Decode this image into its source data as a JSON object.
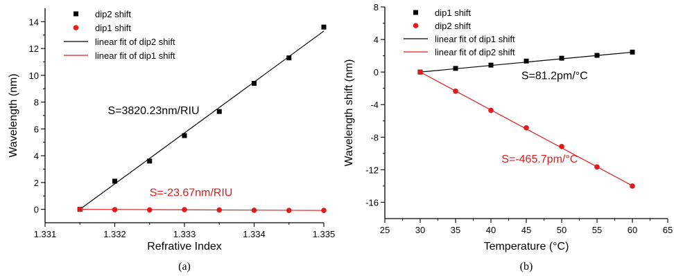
{
  "chart_data": [
    {
      "type": "scatter",
      "caption": "(a)",
      "xlabel": "Refrative Index",
      "ylabel": "Wavelength (nm)",
      "xlim": [
        1.331,
        1.335
      ],
      "ylim": [
        -1,
        15
      ],
      "xticks": [
        1.331,
        1.332,
        1.333,
        1.334,
        1.335
      ],
      "xtick_labels": [
        "1.331",
        "1.332",
        "1.333",
        "1.334",
        "1.335"
      ],
      "yticks": [
        0,
        2,
        4,
        6,
        8,
        10,
        12,
        14
      ],
      "ytick_labels": [
        "0",
        "2",
        "4",
        "6",
        "8",
        "10",
        "12",
        "14"
      ],
      "grid": false,
      "legend_position": "top-left",
      "series": [
        {
          "name": "dip2 shift",
          "kind": "points",
          "marker": "square",
          "color": "#000000",
          "x": [
            1.3315,
            1.332,
            1.3325,
            1.333,
            1.3335,
            1.334,
            1.3345,
            1.335
          ],
          "y": [
            0,
            2.1,
            3.6,
            5.5,
            7.3,
            9.4,
            11.3,
            13.6
          ]
        },
        {
          "name": "dip1 shift",
          "kind": "points",
          "marker": "circle",
          "color": "#e31a1c",
          "x": [
            1.3315,
            1.332,
            1.3325,
            1.333,
            1.3335,
            1.334,
            1.3345,
            1.335
          ],
          "y": [
            0,
            -0.02,
            -0.04,
            -0.02,
            -0.05,
            -0.07,
            -0.08,
            -0.08
          ]
        },
        {
          "name": "linear fit of dip2 shift",
          "kind": "line",
          "color": "#000000",
          "x": [
            1.3315,
            1.335
          ],
          "y": [
            0,
            13.3
          ]
        },
        {
          "name": "linear fit of dip1 shift",
          "kind": "line",
          "color": "#e31a1c",
          "x": [
            1.3315,
            1.335
          ],
          "y": [
            0,
            -0.08
          ]
        }
      ],
      "annotations": [
        {
          "text": "S=3820.23nm/RIU",
          "color": "#000000",
          "x": 1.3319,
          "y": 7.1
        },
        {
          "text": "S=-23.67nm/RIU",
          "color": "#e31a1c",
          "x": 1.3325,
          "y": 1.0
        }
      ]
    },
    {
      "type": "scatter",
      "caption": "(b)",
      "xlabel": "Temperature (°C)",
      "ylabel": "Wavelength shift (nm)",
      "xlim": [
        25,
        65
      ],
      "ylim": [
        -18,
        8
      ],
      "xticks": [
        25,
        30,
        35,
        40,
        45,
        50,
        55,
        60,
        65
      ],
      "xtick_labels": [
        "25",
        "30",
        "35",
        "40",
        "45",
        "50",
        "55",
        "60",
        "65"
      ],
      "yticks": [
        -16,
        -12,
        -8,
        -4,
        0,
        4,
        8
      ],
      "ytick_labels": [
        "-16",
        "-12",
        "-8",
        "-4",
        "0",
        "4",
        "8"
      ],
      "grid": false,
      "legend_position": "top-left",
      "series": [
        {
          "name": "dip1 shift",
          "kind": "points",
          "marker": "square",
          "color": "#000000",
          "x": [
            30,
            35,
            40,
            45,
            50,
            55,
            60
          ],
          "y": [
            0,
            0.45,
            0.85,
            1.35,
            1.7,
            2.05,
            2.45
          ]
        },
        {
          "name": "dip2 shift",
          "kind": "points",
          "marker": "circle",
          "color": "#e31a1c",
          "x": [
            30,
            35,
            40,
            45,
            50,
            55,
            60
          ],
          "y": [
            0,
            -2.35,
            -4.7,
            -6.85,
            -9.15,
            -11.65,
            -14.0
          ]
        },
        {
          "name": "linear fit of dip1 shift",
          "kind": "line",
          "color": "#000000",
          "x": [
            30,
            60
          ],
          "y": [
            0,
            2.44
          ]
        },
        {
          "name": "linear fit of dip2 shift",
          "kind": "line",
          "color": "#e31a1c",
          "x": [
            30,
            60
          ],
          "y": [
            0,
            -13.97
          ]
        }
      ],
      "annotations": [
        {
          "text": "S=81.2pm/°C",
          "color": "#000000",
          "x": 44.3,
          "y": -0.9
        },
        {
          "text": "S=-465.7pm/°C",
          "color": "#e31a1c",
          "x": 41.5,
          "y": -11.1
        }
      ]
    }
  ]
}
